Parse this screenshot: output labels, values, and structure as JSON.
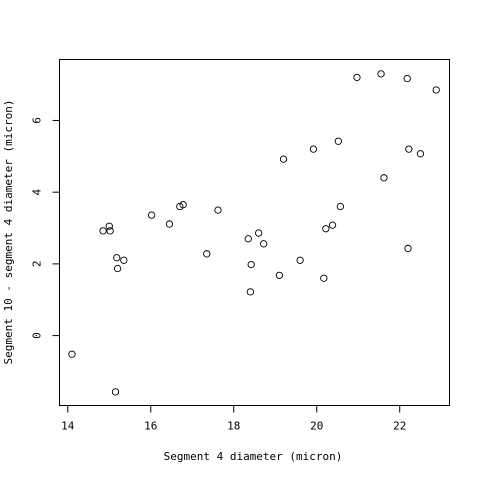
{
  "chart_data": {
    "type": "scatter",
    "title": "",
    "xlabel": "Segment 4 diameter (micron)",
    "ylabel": "Segment 10 - segment 4 diameter (micron)",
    "xlim": [
      13.8,
      23.2
    ],
    "ylim": [
      -1.95,
      7.7
    ],
    "xticks": [
      14,
      16,
      18,
      20,
      22
    ],
    "yticks": [
      0,
      2,
      4,
      6
    ],
    "grid": false,
    "legend": "none",
    "points": [
      {
        "x": 14.1,
        "y": -0.52
      },
      {
        "x": 14.85,
        "y": 2.92
      },
      {
        "x": 15.0,
        "y": 3.05
      },
      {
        "x": 15.02,
        "y": 2.92
      },
      {
        "x": 15.15,
        "y": -1.57
      },
      {
        "x": 15.18,
        "y": 2.17
      },
      {
        "x": 15.2,
        "y": 1.87
      },
      {
        "x": 15.35,
        "y": 2.1
      },
      {
        "x": 16.02,
        "y": 3.36
      },
      {
        "x": 16.45,
        "y": 3.11
      },
      {
        "x": 16.7,
        "y": 3.6
      },
      {
        "x": 16.78,
        "y": 3.65
      },
      {
        "x": 17.35,
        "y": 2.28
      },
      {
        "x": 17.62,
        "y": 3.5
      },
      {
        "x": 18.35,
        "y": 2.7
      },
      {
        "x": 18.4,
        "y": 1.22
      },
      {
        "x": 18.42,
        "y": 1.98
      },
      {
        "x": 18.6,
        "y": 2.86
      },
      {
        "x": 18.72,
        "y": 2.56
      },
      {
        "x": 19.1,
        "y": 1.68
      },
      {
        "x": 19.2,
        "y": 4.92
      },
      {
        "x": 19.6,
        "y": 2.1
      },
      {
        "x": 19.92,
        "y": 5.2
      },
      {
        "x": 20.17,
        "y": 1.6
      },
      {
        "x": 20.22,
        "y": 2.98
      },
      {
        "x": 20.38,
        "y": 3.08
      },
      {
        "x": 20.52,
        "y": 5.42
      },
      {
        "x": 20.57,
        "y": 3.6
      },
      {
        "x": 20.97,
        "y": 7.2
      },
      {
        "x": 21.55,
        "y": 7.3
      },
      {
        "x": 21.62,
        "y": 4.4
      },
      {
        "x": 22.18,
        "y": 7.17
      },
      {
        "x": 22.2,
        "y": 2.43
      },
      {
        "x": 22.22,
        "y": 5.2
      },
      {
        "x": 22.5,
        "y": 5.07
      },
      {
        "x": 22.88,
        "y": 6.85
      }
    ]
  }
}
